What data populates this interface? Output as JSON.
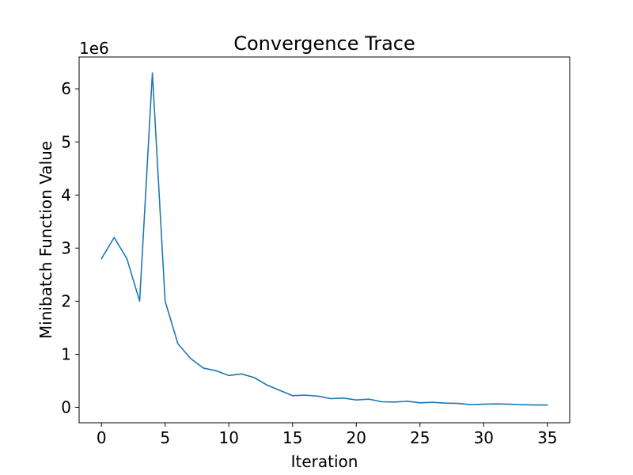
{
  "chart_data": {
    "type": "line",
    "title": "Convergence Trace",
    "xlabel": "Iteration",
    "ylabel": "Minibatch Function Value",
    "y_offset_label": "1e6",
    "xlim": [
      -1.75,
      36.75
    ],
    "ylim": [
      -0.29,
      6.6
    ],
    "x_ticks": [
      0,
      5,
      10,
      15,
      20,
      25,
      30,
      35
    ],
    "y_ticks": [
      0,
      1,
      2,
      3,
      4,
      5,
      6
    ],
    "grid": false,
    "series": [
      {
        "color": "#1f77b4",
        "x": [
          0,
          1,
          2,
          3,
          4,
          5,
          6,
          7,
          8,
          9,
          10,
          11,
          12,
          13,
          14,
          15,
          16,
          17,
          18,
          19,
          20,
          21,
          22,
          23,
          24,
          25,
          26,
          27,
          28,
          29,
          30,
          31,
          32,
          33,
          34,
          35
        ],
        "y": [
          2.8,
          3.2,
          2.8,
          2.0,
          6.3,
          2.0,
          1.2,
          0.92,
          0.74,
          0.69,
          0.6,
          0.63,
          0.56,
          0.42,
          0.32,
          0.22,
          0.23,
          0.21,
          0.165,
          0.175,
          0.14,
          0.155,
          0.105,
          0.1,
          0.115,
          0.085,
          0.095,
          0.08,
          0.075,
          0.05,
          0.06,
          0.065,
          0.06,
          0.05,
          0.045,
          0.045
        ]
      }
    ]
  }
}
